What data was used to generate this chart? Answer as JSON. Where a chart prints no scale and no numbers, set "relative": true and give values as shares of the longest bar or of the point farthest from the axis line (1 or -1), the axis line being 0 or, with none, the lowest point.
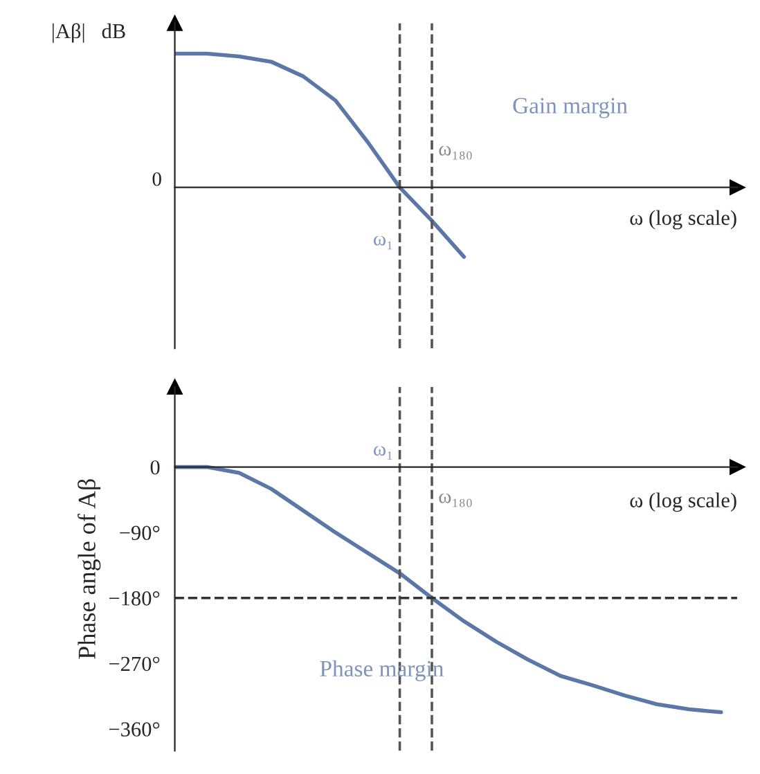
{
  "chart_data": [
    {
      "type": "line",
      "ylabel": "|Aβ|   dB",
      "xlabel": "ω (log scale)",
      "relative": true,
      "categories": [
        null,
        null,
        null,
        null,
        null,
        null,
        null,
        null,
        null,
        null,
        null,
        null,
        null,
        null,
        null,
        null,
        null,
        null
      ],
      "grid": false,
      "marker": "none",
      "line_style": "solid",
      "series": [
        {
          "color": "#5a77a8",
          "values": [
            1.0,
            1.0,
            0.98,
            0.94,
            0.83,
            0.65,
            0.34,
            0,
            -0.25,
            -0.52,
            null,
            null,
            null,
            null,
            null,
            null,
            null,
            null
          ]
        }
      ],
      "annotations": [
        "ω₁",
        "ω₁₈₀",
        "Gain margin",
        "0"
      ]
    },
    {
      "type": "line",
      "ylabel": "Phase angle of Aβ",
      "xlabel": "ω (log scale)",
      "categories": [
        null,
        null,
        null,
        null,
        null,
        null,
        null,
        null,
        null,
        null,
        null,
        null,
        null,
        null,
        null,
        null,
        null,
        null
      ],
      "ylim": [
        -390,
        110
      ],
      "yticks": [
        0,
        {
          "value": -90,
          "label": "−90°"
        },
        {
          "value": -180,
          "label": "−180°"
        },
        {
          "value": -270,
          "label": "−270°"
        },
        {
          "value": -360,
          "label": "−360°"
        }
      ],
      "grid": false,
      "marker": "none",
      "line_style": "solid",
      "series": [
        {
          "color": "#5a77a8",
          "values": [
            0,
            0,
            -8,
            -30,
            -60,
            -90,
            -118,
            -146,
            -180,
            -212,
            -240,
            -265,
            -287,
            -300,
            -314,
            -326,
            -333,
            -337
          ]
        }
      ],
      "ref_lines": [
        {
          "axis": "y",
          "value": -180,
          "color": "#333333",
          "line_style": "dashed"
        }
      ],
      "annotations": [
        "ω₁",
        "ω₁₈₀",
        "Phase margin"
      ]
    }
  ]
}
